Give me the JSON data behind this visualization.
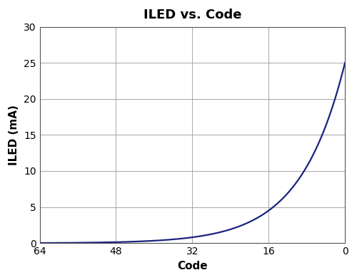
{
  "title": "ILED vs. Code",
  "xlabel": "Code",
  "ylabel": "ILED (mA)",
  "xlim": [
    64,
    0
  ],
  "ylim": [
    0,
    30
  ],
  "xticks": [
    64,
    48,
    32,
    16,
    0
  ],
  "yticks": [
    0,
    5,
    10,
    15,
    20,
    25,
    30
  ],
  "line_color": "#1a237e",
  "line_width": 1.6,
  "grid_color": "#999999",
  "background_color": "#ffffff",
  "title_fontsize": 13,
  "label_fontsize": 11,
  "tick_fontsize": 10,
  "curve_k": 0.135,
  "curve_C": 0.00065
}
